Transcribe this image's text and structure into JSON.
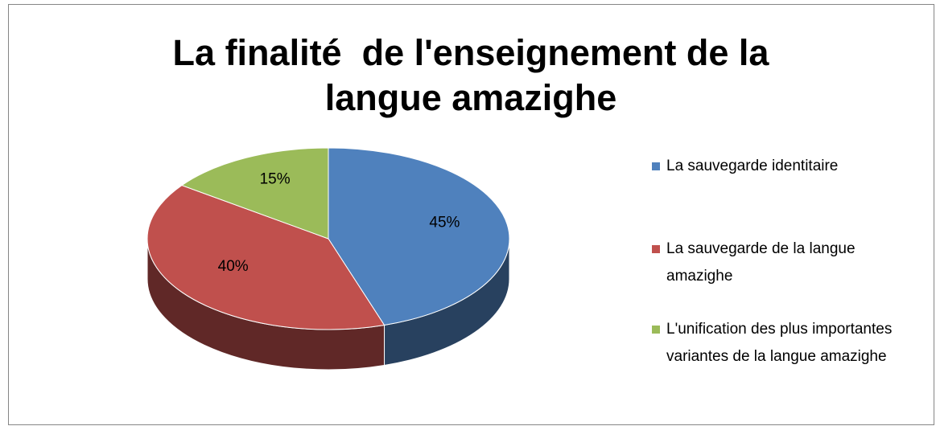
{
  "chart_data": {
    "type": "pie",
    "title": "La finalité  de l'enseignement de la langue amazighe",
    "categories": [
      "La sauvegarde identitaire",
      "La sauvegarde de la langue amazighe",
      "L'unification des plus importantes variantes de la langue amazighe"
    ],
    "values": [
      45,
      40,
      15
    ],
    "value_labels": [
      "45%",
      "40%",
      "15%"
    ],
    "colors": [
      "#4f81bd",
      "#c0504d",
      "#9bbb59"
    ],
    "legend": "right"
  }
}
